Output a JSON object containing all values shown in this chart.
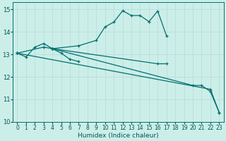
{
  "xlabel": "Humidex (Indice chaleur)",
  "bg_color": "#cceee8",
  "grid_color": "#bbdddd",
  "line_color": "#007070",
  "xlim": [
    -0.5,
    23.5
  ],
  "ylim": [
    10,
    15.3
  ],
  "yticks": [
    10,
    11,
    12,
    13,
    14,
    15
  ],
  "xticks": [
    0,
    1,
    2,
    3,
    4,
    5,
    6,
    7,
    8,
    9,
    10,
    11,
    12,
    13,
    14,
    15,
    16,
    17,
    18,
    19,
    20,
    21,
    22,
    23
  ],
  "series": [
    {
      "x": [
        0,
        1,
        2,
        3,
        4,
        5,
        6,
        7
      ],
      "y": [
        13.05,
        12.88,
        13.32,
        13.48,
        13.25,
        13.05,
        12.78,
        12.68
      ]
    },
    {
      "comment": "curved line up and over, x=0,3,4,7,9,10,11,12,13,14,15,16,17",
      "x": [
        0,
        3,
        4,
        7,
        9,
        10,
        11,
        12,
        13,
        14,
        15,
        16,
        17
      ],
      "y": [
        13.05,
        13.32,
        13.25,
        13.38,
        13.62,
        14.22,
        14.43,
        14.93,
        14.72,
        14.72,
        14.45,
        14.92,
        13.82
      ]
    },
    {
      "x": [
        0,
        22,
        23
      ],
      "y": [
        13.05,
        11.45,
        10.42
      ]
    },
    {
      "x": [
        4,
        20,
        21,
        22,
        23
      ],
      "y": [
        13.25,
        11.62,
        11.62,
        11.35,
        10.42
      ]
    },
    {
      "x": [
        4,
        16,
        17
      ],
      "y": [
        13.25,
        12.58,
        12.58
      ]
    }
  ]
}
